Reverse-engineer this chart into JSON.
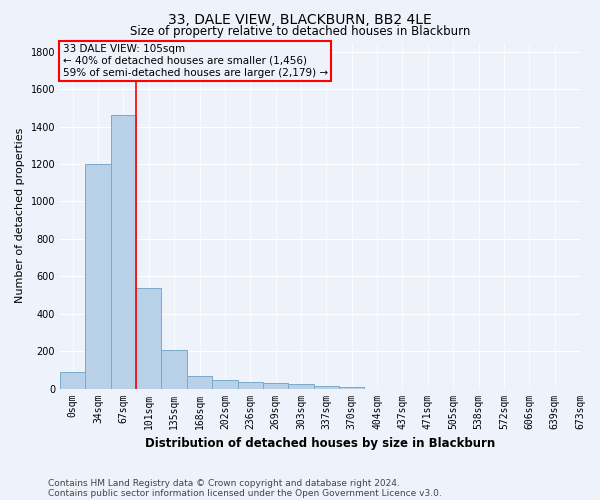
{
  "title1": "33, DALE VIEW, BLACKBURN, BB2 4LE",
  "title2": "Size of property relative to detached houses in Blackburn",
  "xlabel": "Distribution of detached houses by size in Blackburn",
  "ylabel": "Number of detached properties",
  "footer1": "Contains HM Land Registry data © Crown copyright and database right 2024.",
  "footer2": "Contains public sector information licensed under the Open Government Licence v3.0.",
  "annotation_line1": "33 DALE VIEW: 105sqm",
  "annotation_line2": "← 40% of detached houses are smaller (1,456)",
  "annotation_line3": "59% of semi-detached houses are larger (2,179) →",
  "bar_color": "#b8d0e8",
  "bar_edge_color": "#7aaac8",
  "background_color": "#eef2fb",
  "grid_color": "#ffffff",
  "bins": [
    "0sqm",
    "34sqm",
    "67sqm",
    "101sqm",
    "135sqm",
    "168sqm",
    "202sqm",
    "236sqm",
    "269sqm",
    "303sqm",
    "337sqm",
    "370sqm",
    "404sqm",
    "437sqm",
    "471sqm",
    "505sqm",
    "538sqm",
    "572sqm",
    "606sqm",
    "639sqm",
    "673sqm"
  ],
  "values": [
    90,
    1200,
    1465,
    540,
    205,
    65,
    45,
    35,
    28,
    22,
    14,
    10,
    0,
    0,
    0,
    0,
    0,
    0,
    0,
    0
  ],
  "property_bin_index": 2,
  "red_line_x": 2.5,
  "ylim": [
    0,
    1850
  ],
  "yticks": [
    0,
    200,
    400,
    600,
    800,
    1000,
    1200,
    1400,
    1600,
    1800
  ],
  "annotation_color": "red",
  "title1_fontsize": 10,
  "title2_fontsize": 8.5,
  "xlabel_fontsize": 8.5,
  "ylabel_fontsize": 8,
  "tick_fontsize": 7,
  "footer_fontsize": 6.5,
  "annotation_fontsize": 7.5
}
